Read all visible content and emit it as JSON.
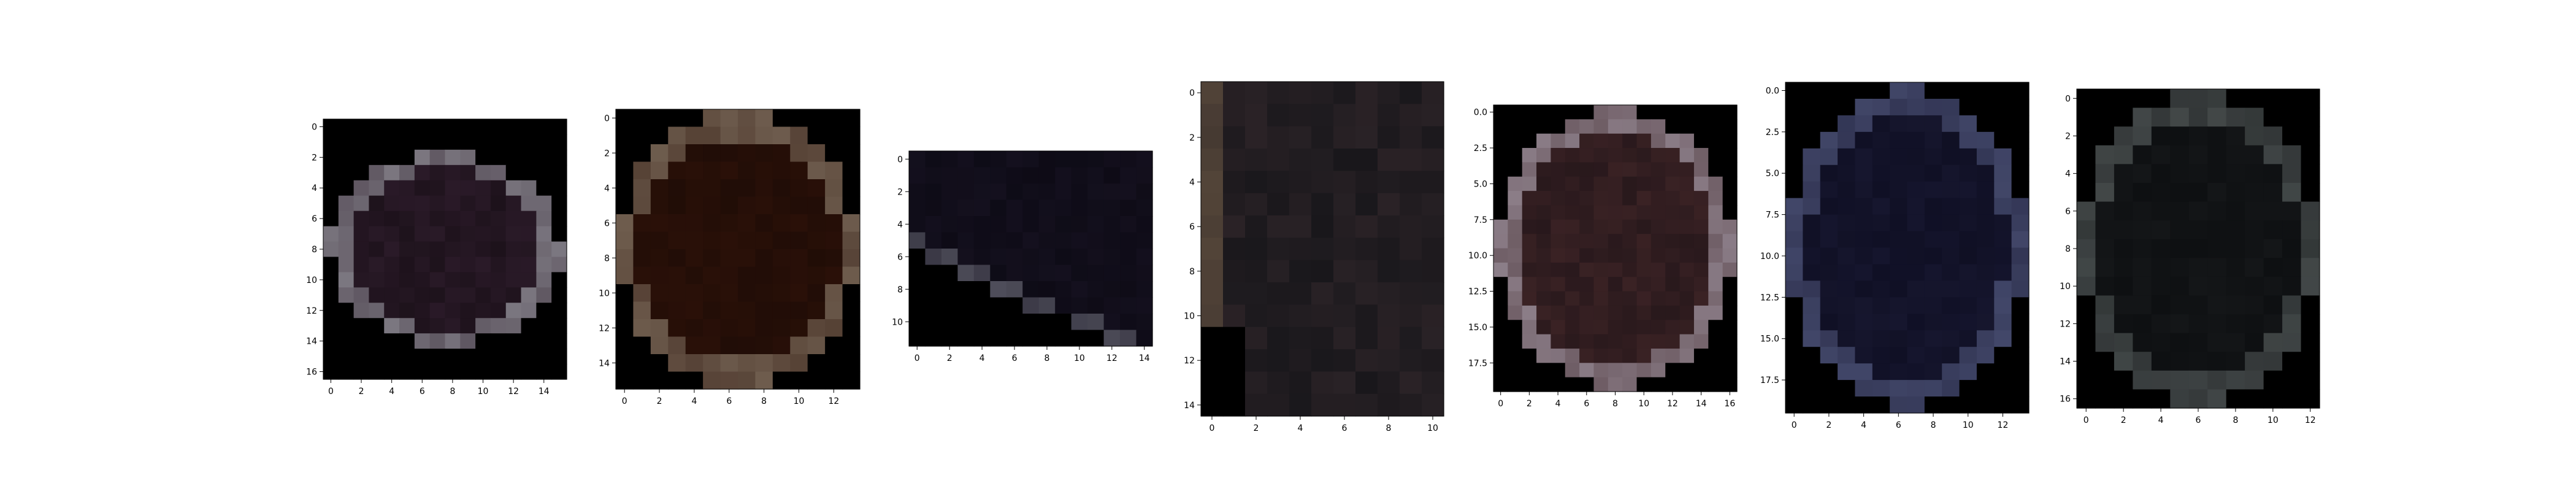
{
  "chart_data": [
    {
      "type": "heatmap",
      "cols": 16,
      "rows": 17,
      "xlim": [
        -0.5,
        15.5
      ],
      "ylim": [
        16.5,
        -0.5
      ],
      "xticks": [
        {
          "v": 0,
          "t": "0"
        },
        {
          "v": 2,
          "t": "2"
        },
        {
          "v": 4,
          "t": "4"
        },
        {
          "v": 6,
          "t": "6"
        },
        {
          "v": 8,
          "t": "8"
        },
        {
          "v": 10,
          "t": "10"
        },
        {
          "v": 12,
          "t": "12"
        },
        {
          "v": 14,
          "t": "14"
        }
      ],
      "yticks": [
        {
          "v": 0,
          "t": "0"
        },
        {
          "v": 2,
          "t": "2"
        },
        {
          "v": 4,
          "t": "4"
        },
        {
          "v": 6,
          "t": "6"
        },
        {
          "v": 8,
          "t": "8"
        },
        {
          "v": 10,
          "t": "10"
        },
        {
          "v": 12,
          "t": "12"
        },
        {
          "v": 14,
          "t": "14"
        },
        {
          "v": 16,
          "t": "16"
        }
      ],
      "colors": {
        "bg": "#000000",
        "rim": "#8a8890",
        "inner": "#2a1a28",
        "dark": "#1a1018"
      },
      "shape": "hull"
    },
    {
      "type": "heatmap",
      "cols": 14,
      "rows": 16,
      "xlim": [
        -0.5,
        13.5
      ],
      "ylim": [
        15.5,
        -0.5
      ],
      "xticks": [
        {
          "v": 0,
          "t": "0"
        },
        {
          "v": 2,
          "t": "2"
        },
        {
          "v": 4,
          "t": "4"
        },
        {
          "v": 6,
          "t": "6"
        },
        {
          "v": 8,
          "t": "8"
        },
        {
          "v": 10,
          "t": "10"
        },
        {
          "v": 12,
          "t": "12"
        }
      ],
      "yticks": [
        {
          "v": 0,
          "t": "0"
        },
        {
          "v": 2,
          "t": "2"
        },
        {
          "v": 4,
          "t": "4"
        },
        {
          "v": 6,
          "t": "6"
        },
        {
          "v": 8,
          "t": "8"
        },
        {
          "v": 10,
          "t": "10"
        },
        {
          "v": 12,
          "t": "12"
        },
        {
          "v": 14,
          "t": "14"
        }
      ],
      "colors": {
        "bg": "#000000",
        "rim": "#7a6a5a",
        "inner": "#2a1008",
        "dark": "#1e0c06"
      },
      "shape": "ellipse"
    },
    {
      "type": "heatmap",
      "cols": 15,
      "rows": 12,
      "xlim": [
        -0.5,
        14.5
      ],
      "ylim": [
        11.5,
        -0.5
      ],
      "xticks": [
        {
          "v": 0,
          "t": "0"
        },
        {
          "v": 2,
          "t": "2"
        },
        {
          "v": 4,
          "t": "4"
        },
        {
          "v": 6,
          "t": "6"
        },
        {
          "v": 8,
          "t": "8"
        },
        {
          "v": 10,
          "t": "10"
        },
        {
          "v": 12,
          "t": "12"
        },
        {
          "v": 14,
          "t": "14"
        }
      ],
      "yticks": [
        {
          "v": 0,
          "t": "0"
        },
        {
          "v": 2,
          "t": "2"
        },
        {
          "v": 4,
          "t": "4"
        },
        {
          "v": 6,
          "t": "6"
        },
        {
          "v": 8,
          "t": "8"
        },
        {
          "v": 10,
          "t": "10"
        }
      ],
      "colors": {
        "bg": "#000000",
        "rim": "#5a5a66",
        "inner": "#14101e",
        "dark": "#0c0a14"
      },
      "shape": "wedge"
    },
    {
      "type": "heatmap",
      "cols": 11,
      "rows": 15,
      "xlim": [
        -0.5,
        10.5
      ],
      "ylim": [
        14.5,
        -0.5
      ],
      "xticks": [
        {
          "v": 0,
          "t": "0"
        },
        {
          "v": 2,
          "t": "2"
        },
        {
          "v": 4,
          "t": "4"
        },
        {
          "v": 6,
          "t": "6"
        },
        {
          "v": 8,
          "t": "8"
        },
        {
          "v": 10,
          "t": "10"
        }
      ],
      "yticks": [
        {
          "v": 0,
          "t": "0"
        },
        {
          "v": 2,
          "t": "2"
        },
        {
          "v": 4,
          "t": "4"
        },
        {
          "v": 6,
          "t": "6"
        },
        {
          "v": 8,
          "t": "8"
        },
        {
          "v": 10,
          "t": "10"
        },
        {
          "v": 12,
          "t": "12"
        },
        {
          "v": 14,
          "t": "14"
        }
      ],
      "colors": {
        "bg": "#000000",
        "rim": "#5c4c3c",
        "inner": "#2a2226",
        "dark": "#141418"
      },
      "shape": "crop"
    },
    {
      "type": "heatmap",
      "cols": 17,
      "rows": 20,
      "xlim": [
        -0.5,
        16.5
      ],
      "ylim": [
        19.5,
        -0.5
      ],
      "xticks": [
        {
          "v": 0,
          "t": "0"
        },
        {
          "v": 2,
          "t": "2"
        },
        {
          "v": 4,
          "t": "4"
        },
        {
          "v": 6,
          "t": "6"
        },
        {
          "v": 8,
          "t": "8"
        },
        {
          "v": 10,
          "t": "10"
        },
        {
          "v": 12,
          "t": "12"
        },
        {
          "v": 14,
          "t": "14"
        },
        {
          "v": 16,
          "t": "16"
        }
      ],
      "yticks": [
        {
          "v": 0,
          "t": "0.0"
        },
        {
          "v": 2.5,
          "t": "2.5"
        },
        {
          "v": 5,
          "t": "5.0"
        },
        {
          "v": 7.5,
          "t": "7.5"
        },
        {
          "v": 10,
          "t": "10.0"
        },
        {
          "v": 12.5,
          "t": "12.5"
        },
        {
          "v": 15,
          "t": "15.0"
        },
        {
          "v": 17.5,
          "t": "17.5"
        }
      ],
      "colors": {
        "bg": "#000000",
        "rim": "#9a8e9a",
        "inner": "#3a2224",
        "dark": "#24161a"
      },
      "shape": "ellipse"
    },
    {
      "type": "heatmap",
      "cols": 14,
      "rows": 20,
      "xlim": [
        -0.5,
        13.5
      ],
      "ylim": [
        19.5,
        -0.5
      ],
      "xticks": [
        {
          "v": 0,
          "t": "0"
        },
        {
          "v": 2,
          "t": "2"
        },
        {
          "v": 4,
          "t": "4"
        },
        {
          "v": 6,
          "t": "6"
        },
        {
          "v": 8,
          "t": "8"
        },
        {
          "v": 10,
          "t": "10"
        },
        {
          "v": 12,
          "t": "12"
        }
      ],
      "yticks": [
        {
          "v": 0,
          "t": "0.0"
        },
        {
          "v": 2.5,
          "t": "2.5"
        },
        {
          "v": 5,
          "t": "5.0"
        },
        {
          "v": 7.5,
          "t": "7.5"
        },
        {
          "v": 10,
          "t": "10.0"
        },
        {
          "v": 12.5,
          "t": "12.5"
        },
        {
          "v": 15,
          "t": "15.0"
        },
        {
          "v": 17.5,
          "t": "17.5"
        }
      ],
      "colors": {
        "bg": "#000000",
        "rim": "#4a5074",
        "inner": "#16162e",
        "dark": "#0e0e22"
      },
      "shape": "ellipse"
    },
    {
      "type": "heatmap",
      "cols": 13,
      "rows": 17,
      "xlim": [
        -0.5,
        12.5
      ],
      "ylim": [
        16.5,
        -0.5
      ],
      "xticks": [
        {
          "v": 0,
          "t": "0"
        },
        {
          "v": 2,
          "t": "2"
        },
        {
          "v": 4,
          "t": "4"
        },
        {
          "v": 6,
          "t": "6"
        },
        {
          "v": 8,
          "t": "8"
        },
        {
          "v": 10,
          "t": "10"
        },
        {
          "v": 12,
          "t": "12"
        }
      ],
      "yticks": [
        {
          "v": 0,
          "t": "0"
        },
        {
          "v": 2,
          "t": "2"
        },
        {
          "v": 4,
          "t": "4"
        },
        {
          "v": 6,
          "t": "6"
        },
        {
          "v": 8,
          "t": "8"
        },
        {
          "v": 10,
          "t": "10"
        },
        {
          "v": 12,
          "t": "12"
        },
        {
          "v": 14,
          "t": "14"
        },
        {
          "v": 16,
          "t": "16"
        }
      ],
      "colors": {
        "bg": "#000000",
        "rim": "#4a5050",
        "inner": "#141618",
        "dark": "#0c0e10"
      },
      "shape": "ellipse"
    }
  ]
}
